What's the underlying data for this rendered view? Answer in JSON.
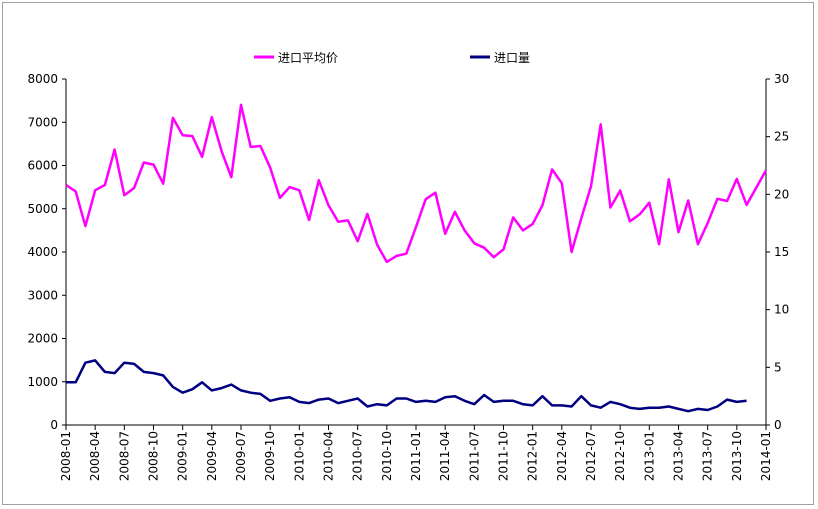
{
  "chart_data": {
    "type": "line",
    "title": "",
    "legend_placement": "top",
    "grid": false,
    "x_tick_labels": [
      "2008-01",
      "2008-04",
      "2008-07",
      "2008-10",
      "2009-01",
      "2009-04",
      "2009-07",
      "2009-10",
      "2010-01",
      "2010-04",
      "2010-07",
      "2010-10",
      "2011-01",
      "2011-04",
      "2011-07",
      "2011-10",
      "2012-01",
      "2012-04",
      "2012-07",
      "2012-10",
      "2013-01",
      "2013-04",
      "2013-07",
      "2013-10",
      "2014-01"
    ],
    "y_left": {
      "min": 0,
      "max": 8000,
      "ticks": [
        0,
        1000,
        2000,
        3000,
        4000,
        5000,
        6000,
        7000,
        8000
      ]
    },
    "y_right": {
      "min": 0,
      "max": 30,
      "ticks": [
        0,
        5,
        10,
        15,
        20,
        25,
        30
      ]
    },
    "series": [
      {
        "name": "进口平均价",
        "axis": "left",
        "color": "#ff00ff",
        "values": [
          5550,
          5400,
          4600,
          5430,
          5550,
          6370,
          5310,
          5480,
          6070,
          6020,
          5580,
          7100,
          6700,
          6680,
          6200,
          7120,
          6330,
          5730,
          7400,
          6430,
          6450,
          5950,
          5250,
          5500,
          5430,
          4740,
          5660,
          5080,
          4700,
          4730,
          4250,
          4880,
          4170,
          3770,
          3910,
          3960,
          4580,
          5220,
          5370,
          4420,
          4930,
          4500,
          4200,
          4100,
          3880,
          4060,
          4800,
          4500,
          4650,
          5080,
          5910,
          5590,
          4000,
          4780,
          5520,
          6950,
          5030,
          5420,
          4710,
          4870,
          5140,
          4180,
          5680,
          4460,
          5190,
          4180,
          4670,
          5230,
          5180,
          5690,
          5090,
          5490,
          5890
        ]
      },
      {
        "name": "进口量",
        "axis": "right",
        "color": "#000080",
        "values": [
          3.7,
          3.7,
          5.4,
          5.6,
          4.6,
          4.5,
          5.4,
          5.3,
          4.6,
          4.5,
          4.3,
          3.3,
          2.8,
          3.1,
          3.7,
          3.0,
          3.2,
          3.5,
          3.0,
          2.8,
          2.7,
          2.1,
          2.3,
          2.4,
          2.0,
          1.9,
          2.2,
          2.3,
          1.9,
          2.1,
          2.3,
          1.6,
          1.8,
          1.7,
          2.3,
          2.3,
          2.0,
          2.1,
          2.0,
          2.4,
          2.5,
          2.1,
          1.8,
          2.6,
          2.0,
          2.1,
          2.1,
          1.8,
          1.7,
          2.5,
          1.7,
          1.7,
          1.6,
          2.5,
          1.7,
          1.5,
          2.0,
          1.8,
          1.5,
          1.4,
          1.5,
          1.5,
          1.6,
          1.4,
          1.2,
          1.4,
          1.3,
          1.6,
          2.2,
          2.0,
          2.1
        ]
      }
    ]
  }
}
